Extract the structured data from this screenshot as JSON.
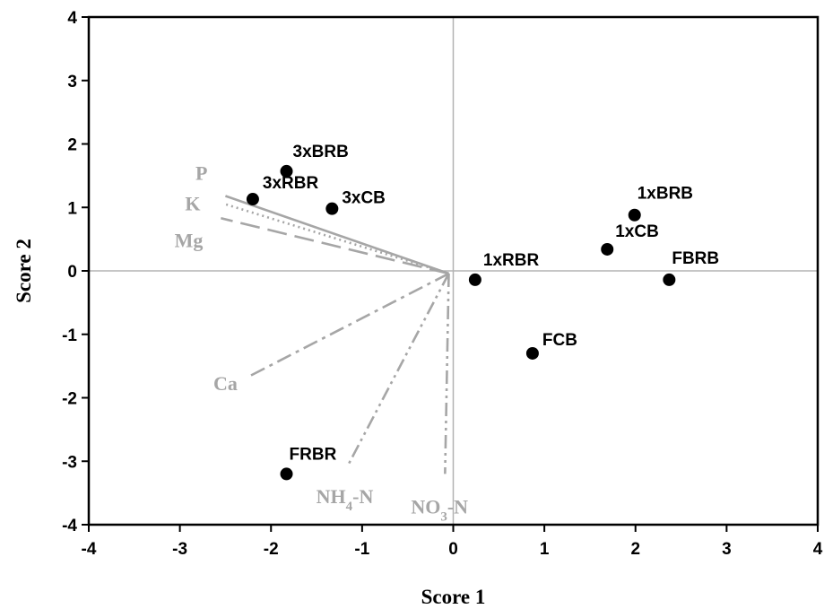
{
  "chart_data": {
    "type": "scatter",
    "title": "",
    "xlabel": "Score 1",
    "ylabel": "Score 2",
    "xlim": [
      -4,
      4
    ],
    "ylim": [
      -4,
      4
    ],
    "x_ticks": [
      "-4",
      "-3",
      "-2",
      "-1",
      "0",
      "1",
      "2",
      "3",
      "4"
    ],
    "y_ticks": [
      "-4",
      "-3",
      "-2",
      "-1",
      "0",
      "1",
      "2",
      "3",
      "4"
    ],
    "grid": false,
    "reference_lines": {
      "x": 0,
      "y": 0,
      "color": "#b3b3b3"
    },
    "points": [
      {
        "label": "3xBRB",
        "x": -1.83,
        "y": 1.57
      },
      {
        "label": "3xRBR",
        "x": -2.2,
        "y": 1.13
      },
      {
        "label": "3xCB",
        "x": -1.33,
        "y": 0.98
      },
      {
        "label": "1xBRB",
        "x": 1.99,
        "y": 0.88
      },
      {
        "label": "1xCB",
        "x": 1.69,
        "y": 0.34
      },
      {
        "label": "1xRBR",
        "x": 0.24,
        "y": -0.14
      },
      {
        "label": "FBRB",
        "x": 2.37,
        "y": -0.14
      },
      {
        "label": "FCB",
        "x": 0.87,
        "y": -1.3
      },
      {
        "label": "FRBR",
        "x": -1.83,
        "y": -3.2
      }
    ],
    "vectors": [
      {
        "name": "P",
        "x": -2.5,
        "y": 1.18,
        "style": "solid"
      },
      {
        "name": "K",
        "x": -2.5,
        "y": 1.05,
        "style": "dotted"
      },
      {
        "name": "Mg",
        "x": -2.55,
        "y": 0.83,
        "style": "long-dash"
      },
      {
        "name": "Ca",
        "x": -2.25,
        "y": -1.67,
        "style": "dash-dot"
      },
      {
        "name": "NH4-N",
        "x": -1.15,
        "y": -3.05,
        "style": "dash-dot-dot"
      },
      {
        "name": "NO3-N",
        "x": -0.09,
        "y": -3.2,
        "style": "dash-dot-dot"
      }
    ],
    "vector_color": "#a6a6a6",
    "point_color": "#000000"
  }
}
